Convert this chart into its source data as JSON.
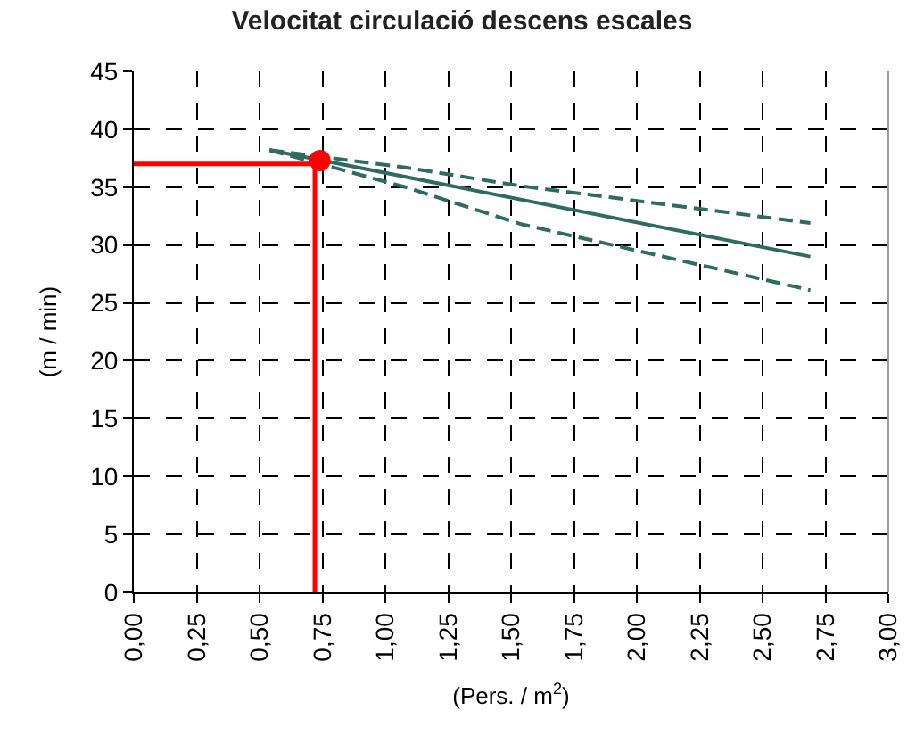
{
  "chart_data": {
    "type": "line",
    "title": "Velocitat circulació descens escales",
    "xlabel": "(Pers. / m$^{2}$)",
    "ylabel": "(m / min)",
    "xlim": [
      0,
      3
    ],
    "ylim": [
      0,
      45
    ],
    "xticks": [
      {
        "value": 0,
        "label": "0,00"
      },
      {
        "value": 0.25,
        "label": "0,25"
      },
      {
        "value": 0.5,
        "label": "0,50"
      },
      {
        "value": 0.75,
        "label": "0,75"
      },
      {
        "value": 1,
        "label": "1,00"
      },
      {
        "value": 1.25,
        "label": "1,25"
      },
      {
        "value": 1.5,
        "label": "1,50"
      },
      {
        "value": 1.75,
        "label": "1,75"
      },
      {
        "value": 2,
        "label": "2,00"
      },
      {
        "value": 2.25,
        "label": "2,25"
      },
      {
        "value": 2.5,
        "label": "2,50"
      },
      {
        "value": 2.75,
        "label": "2,75"
      },
      {
        "value": 3,
        "label": "3,00"
      }
    ],
    "yticks": [
      0,
      5,
      10,
      15,
      20,
      25,
      30,
      35,
      40,
      45
    ],
    "grid": true,
    "marker": "none",
    "series": [
      {
        "color": "#2f6b63",
        "line_style": "solid",
        "x": [
          0.54,
          2.69
        ],
        "values": [
          38.2,
          29.0
        ]
      },
      {
        "color": "#2f6b63",
        "line_style": "dashed",
        "x": [
          0.54,
          1.08,
          1.54,
          2.69
        ],
        "values": [
          38.2,
          36.7,
          35.1,
          31.9
        ]
      },
      {
        "color": "#2f6b63",
        "line_style": "dashed",
        "x": [
          0.54,
          1.08,
          1.54,
          2.69
        ],
        "values": [
          38.2,
          35.0,
          31.8,
          26.1
        ]
      },
      {
        "color": "#ff0000",
        "line_style": "solid",
        "x": [
          0,
          0.72,
          0.72
        ],
        "values": [
          37,
          37,
          0
        ]
      },
      {
        "type": "scatter",
        "marker": "circle",
        "color": "#ff0000",
        "x": [
          0.74
        ],
        "values": [
          37.3
        ]
      }
    ]
  }
}
